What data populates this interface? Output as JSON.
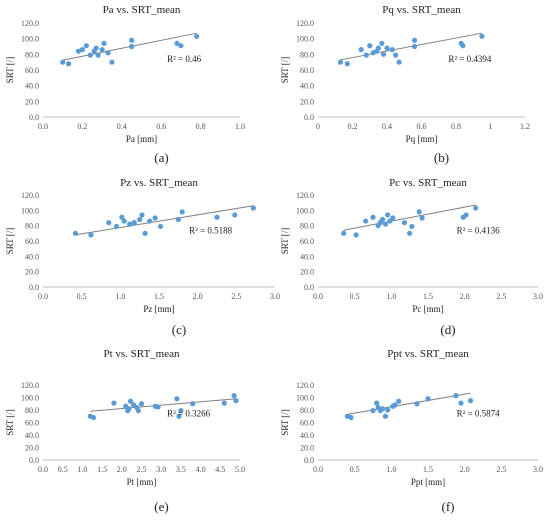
{
  "chart_data": [
    {
      "type": "scatter",
      "title": "Pa vs. SRT_mean",
      "xlabel": "Pa [mm]",
      "ylabel": "SRT [/]",
      "xlim": [
        0,
        1.0
      ],
      "ylim": [
        0,
        120
      ],
      "xticks": [
        "0.0",
        "0.2",
        "0.4",
        "0.6",
        "0.8",
        "1.0"
      ],
      "yticks": [
        "0.0",
        "20.0",
        "40.0",
        "60.0",
        "80.0",
        "100.0",
        "120.0"
      ],
      "x": [
        0.1,
        0.13,
        0.18,
        0.2,
        0.22,
        0.24,
        0.26,
        0.27,
        0.28,
        0.3,
        0.31,
        0.33,
        0.35,
        0.45,
        0.45,
        0.68,
        0.7,
        0.78
      ],
      "y": [
        70,
        68,
        84,
        86,
        91,
        79,
        84,
        88,
        79,
        86,
        94,
        82,
        70,
        90,
        98,
        94,
        91,
        103
      ],
      "trend": [
        72.5,
        107
      ],
      "r2_label": "R² = 0.46",
      "caption": "(a)",
      "grid": false
    },
    {
      "type": "scatter",
      "title": "Pq vs. SRT_mean",
      "xlabel": "Pq [mm]",
      "ylabel": "SRT [/]",
      "xlim": [
        0,
        1.2
      ],
      "ylim": [
        0,
        120
      ],
      "xticks": [
        "0",
        "0.2",
        "0.4",
        "0.6",
        "0.8",
        "1",
        "1.2"
      ],
      "yticks": [
        "0.0",
        "20.0",
        "40.0",
        "60.0",
        "80.0",
        "100.0",
        "120.0"
      ],
      "x": [
        0.13,
        0.17,
        0.25,
        0.28,
        0.3,
        0.32,
        0.34,
        0.35,
        0.37,
        0.38,
        0.4,
        0.43,
        0.45,
        0.47,
        0.56,
        0.56,
        0.83,
        0.84,
        0.95
      ],
      "y": [
        70,
        68,
        86,
        79,
        91,
        82,
        84,
        88,
        94,
        80,
        88,
        86,
        79,
        70,
        90,
        98,
        94,
        91,
        103
      ],
      "trend": [
        73,
        107
      ],
      "r2_label": "R² = 0.4394",
      "caption": "(b)",
      "grid": false
    },
    {
      "type": "scatter",
      "title": "Pz vs. SRT_mean",
      "xlabel": "Pz [mm]",
      "ylabel": "SRT [/]",
      "xlim": [
        0,
        3.0
      ],
      "ylim": [
        0,
        120
      ],
      "xticks": [
        "0.0",
        "0.5",
        "1.0",
        "1.5",
        "2.0",
        "2.5",
        "3.0"
      ],
      "yticks": [
        "0.0",
        "20.0",
        "40.0",
        "60.0",
        "80.0",
        "100.0",
        "120.0"
      ],
      "x": [
        0.42,
        0.62,
        0.85,
        0.95,
        1.02,
        1.05,
        1.12,
        1.18,
        1.25,
        1.28,
        1.32,
        1.38,
        1.45,
        1.52,
        1.75,
        1.8,
        2.25,
        2.48,
        2.72
      ],
      "y": [
        70,
        68,
        84,
        79,
        91,
        86,
        82,
        84,
        88,
        94,
        70,
        86,
        90,
        79,
        88,
        98,
        91,
        94,
        103
      ],
      "trend": [
        68,
        106
      ],
      "r2_label": "R² = 0.5188",
      "caption": "(c)",
      "grid": false
    },
    {
      "type": "scatter",
      "title": "Pc vs. SRT_mean",
      "xlabel": "Pc [mm]",
      "ylabel": "SRT [/]",
      "xlim": [
        0,
        3.0
      ],
      "ylim": [
        0,
        120
      ],
      "xticks": [
        "0.0",
        "0.5",
        "1.0",
        "1.5",
        "2.0",
        "2.5",
        "3.0"
      ],
      "yticks": [
        "0.0",
        "20.0",
        "40.0",
        "60.0",
        "80.0",
        "100.0",
        "120.0"
      ],
      "x": [
        0.35,
        0.52,
        0.65,
        0.75,
        0.82,
        0.85,
        0.88,
        0.92,
        0.95,
        0.98,
        1.02,
        1.18,
        1.25,
        1.28,
        1.38,
        1.42,
        1.98,
        2.02,
        2.15
      ],
      "y": [
        70,
        68,
        86,
        91,
        80,
        84,
        88,
        82,
        94,
        86,
        90,
        84,
        70,
        79,
        98,
        90,
        91,
        94,
        103
      ],
      "trend": [
        74,
        107
      ],
      "r2_label": "R² = 0.4136",
      "caption": "(d)",
      "grid": false
    },
    {
      "type": "scatter",
      "title": "Pt vs. SRT_mean",
      "xlabel": "Pt [mm]",
      "ylabel": "SRT [/]",
      "xlim": [
        0,
        5.0
      ],
      "ylim": [
        0,
        120
      ],
      "xticks": [
        "0.0",
        "0.5",
        "1.0",
        "1.5",
        "2.0",
        "2.5",
        "3.0",
        "3.5",
        "4.0",
        "4.5",
        "5.0"
      ],
      "yticks": [
        "0.0",
        "20.0",
        "40.0",
        "60.0",
        "80.0",
        "100.0",
        "120.0"
      ],
      "x": [
        1.2,
        1.28,
        1.8,
        2.1,
        2.15,
        2.18,
        2.22,
        2.3,
        2.38,
        2.42,
        2.5,
        2.85,
        2.92,
        3.4,
        3.45,
        3.5,
        3.8,
        4.6,
        4.85,
        4.9
      ],
      "y": [
        70,
        68,
        91,
        86,
        79,
        82,
        94,
        88,
        84,
        79,
        90,
        86,
        85,
        98,
        70,
        79,
        90,
        91,
        103,
        95
      ],
      "trend": [
        78,
        98
      ],
      "r2_label": "R² = 0.3266",
      "caption": "(e)",
      "grid": false
    },
    {
      "type": "scatter",
      "title": "Ppt vs. SRT_mean",
      "xlabel": "Ppt [mm]",
      "ylabel": "SRT [/]",
      "xlim": [
        0,
        3.0
      ],
      "ylim": [
        0,
        120
      ],
      "xticks": [
        "0.0",
        "0.5",
        "1.0",
        "1.5",
        "2.0",
        "2.5",
        "3.0"
      ],
      "yticks": [
        "0.0",
        "20.0",
        "40.0",
        "60.0",
        "80.0",
        "100.0",
        "120.0"
      ],
      "x": [
        0.4,
        0.45,
        0.75,
        0.8,
        0.82,
        0.85,
        0.88,
        0.92,
        0.95,
        1.02,
        1.05,
        1.1,
        1.35,
        1.5,
        1.88,
        1.95,
        2.08
      ],
      "y": [
        70,
        68,
        79,
        91,
        84,
        79,
        82,
        70,
        80,
        86,
        88,
        94,
        90,
        98,
        103,
        91,
        95
      ],
      "trend": [
        73,
        107
      ],
      "r2_label": "R² = 0.5874",
      "caption": "(f)",
      "grid": false
    }
  ],
  "colors": {
    "marker": "#5b9bd5",
    "trendline": "#7f7f7f",
    "axis": "#bfbfbf",
    "text": "#222222",
    "tick_text": "#555555"
  }
}
